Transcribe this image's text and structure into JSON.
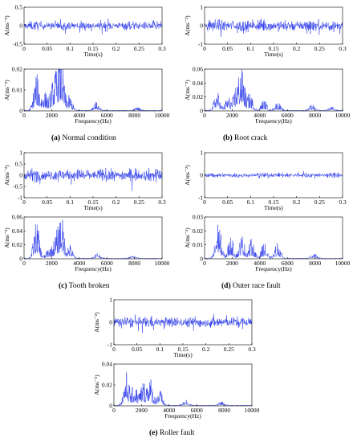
{
  "figure": {
    "colors": {
      "signal": "#1f2fe8",
      "axis": "#000000"
    },
    "panels": [
      {
        "letter": "(a)",
        "label": "Normal condition"
      },
      {
        "letter": "(b)",
        "label": "Root crack"
      },
      {
        "letter": "(c)",
        "label": "Tooth broken"
      },
      {
        "letter": "(d)",
        "label": "Outer race fault"
      },
      {
        "letter": "(e)",
        "label": "Roller fault"
      }
    ]
  },
  "chart_data": [
    {
      "id": "a-time",
      "type": "line",
      "xlabel": "Time(s)",
      "ylabel": "A(ms⁻²)",
      "xlim": [
        0,
        0.3
      ],
      "ylim": [
        -0.5,
        0.5
      ],
      "xticks": [
        "0",
        "0.05",
        "0.1",
        "0.15",
        "0.2",
        "0.25",
        "0.3"
      ],
      "yticks": [
        "-0.5",
        "0",
        "0.5"
      ],
      "amplitude": 0.22
    },
    {
      "id": "a-freq",
      "type": "line",
      "xlabel": "Frequency(Hz)",
      "ylabel": "A(ms⁻²)",
      "xlim": [
        0,
        10000
      ],
      "ylim": [
        0,
        0.02
      ],
      "xticks": [
        "0",
        "2000",
        "4000",
        "6000",
        "8000",
        "10000"
      ],
      "yticks": [
        "0",
        "0.01",
        "0.02"
      ],
      "peaks": [
        [
          900,
          0.0175
        ],
        [
          1500,
          0.009
        ],
        [
          2100,
          0.013
        ],
        [
          2500,
          0.0165
        ],
        [
          2700,
          0.018
        ],
        [
          3300,
          0.007
        ],
        [
          5200,
          0.004
        ],
        [
          8200,
          0.0015
        ]
      ]
    },
    {
      "id": "b-time",
      "type": "line",
      "xlabel": "Time(s)",
      "ylabel": "A(ms⁻²)",
      "xlim": [
        0,
        0.3
      ],
      "ylim": [
        -1,
        1
      ],
      "xticks": [
        "0",
        "0.05",
        "0.1",
        "0.15",
        "0.2",
        "0.25",
        "0.3"
      ],
      "yticks": [
        "-1",
        "0",
        "1"
      ],
      "amplitude": 0.6
    },
    {
      "id": "b-freq",
      "type": "line",
      "xlabel": "Frequency(Hz)",
      "ylabel": "A(ms⁻²)",
      "xlim": [
        0,
        10000
      ],
      "ylim": [
        0,
        0.06
      ],
      "xticks": [
        "0",
        "2000",
        "4000",
        "6000",
        "8000",
        "10000"
      ],
      "yticks": [
        "0",
        "0.02",
        "0.04",
        "0.06"
      ],
      "peaks": [
        [
          900,
          0.028
        ],
        [
          1700,
          0.02
        ],
        [
          2300,
          0.033
        ],
        [
          2700,
          0.06
        ],
        [
          3300,
          0.024
        ],
        [
          4300,
          0.015
        ],
        [
          5300,
          0.012
        ],
        [
          7800,
          0.008
        ],
        [
          9200,
          0.005
        ]
      ]
    },
    {
      "id": "c-time",
      "type": "line",
      "xlabel": "Time(s)",
      "ylabel": "A(ms⁻²)",
      "xlim": [
        0,
        0.3
      ],
      "ylim": [
        -1,
        1
      ],
      "xticks": [
        "0",
        "0.05",
        "0.1",
        "0.15",
        "0.2",
        "0.25",
        "0.3"
      ],
      "yticks": [
        "-1",
        "-0.5",
        "0",
        "0.5",
        "1"
      ],
      "amplitude": 0.5
    },
    {
      "id": "c-freq",
      "type": "line",
      "xlabel": "Frequency(Hz)",
      "ylabel": "A(ms⁻²)",
      "xlim": [
        0,
        10000
      ],
      "ylim": [
        0,
        0.06
      ],
      "xticks": [
        "0",
        "2000",
        "4000",
        "6000",
        "8000",
        "10000"
      ],
      "yticks": [
        "0",
        "0.02",
        "0.04",
        "0.06"
      ],
      "peaks": [
        [
          900,
          0.054
        ],
        [
          1800,
          0.015
        ],
        [
          2300,
          0.028
        ],
        [
          2700,
          0.06
        ],
        [
          3300,
          0.02
        ],
        [
          5300,
          0.008
        ],
        [
          7900,
          0.004
        ]
      ]
    },
    {
      "id": "d-time",
      "type": "line",
      "xlabel": "Time(s)",
      "ylabel": "A(ms⁻²)",
      "xlim": [
        0,
        0.3
      ],
      "ylim": [
        -1,
        1
      ],
      "xticks": [
        "0",
        "0.05",
        "0.1",
        "0.15",
        "0.2",
        "0.25",
        "0.3"
      ],
      "yticks": [
        "-1",
        "0",
        "1"
      ],
      "amplitude": 0.2
    },
    {
      "id": "d-freq",
      "type": "line",
      "xlabel": "Frequency(Hz)",
      "ylabel": "A(ms⁻²)",
      "xlim": [
        0,
        10000
      ],
      "ylim": [
        0,
        0.03
      ],
      "xticks": [
        "0",
        "2000",
        "4000",
        "6000",
        "8000",
        "10000"
      ],
      "yticks": [
        "0",
        "0.01",
        "0.02",
        "0.03"
      ],
      "peaks": [
        [
          1000,
          0.027
        ],
        [
          1900,
          0.016
        ],
        [
          2700,
          0.017
        ],
        [
          3400,
          0.014
        ],
        [
          4300,
          0.011
        ],
        [
          5300,
          0.012
        ],
        [
          7900,
          0.004
        ]
      ]
    },
    {
      "id": "e-time",
      "type": "line",
      "xlabel": "Time(s)",
      "ylabel": "A(ms⁻²)",
      "xlim": [
        0,
        0.3
      ],
      "ylim": [
        -1,
        1
      ],
      "xticks": [
        "0",
        "0.05",
        "0.1",
        "0.15",
        "0.2",
        "0.25",
        "0.3"
      ],
      "yticks": [
        "-1",
        "0",
        "1"
      ],
      "amplitude": 0.45
    },
    {
      "id": "e-freq",
      "type": "line",
      "xlabel": "Frequency(Hz)",
      "ylabel": "A(ms⁻²)",
      "xlim": [
        0,
        10000
      ],
      "ylim": [
        0,
        0.04
      ],
      "xticks": [
        "0",
        "2000",
        "4000",
        "6000",
        "8000",
        "10000"
      ],
      "yticks": [
        "0",
        "0.02",
        "0.04"
      ],
      "peaks": [
        [
          900,
          0.032
        ],
        [
          1500,
          0.02
        ],
        [
          2100,
          0.022
        ],
        [
          2600,
          0.028
        ],
        [
          3300,
          0.016
        ],
        [
          5200,
          0.006
        ],
        [
          7800,
          0.004
        ]
      ]
    }
  ]
}
